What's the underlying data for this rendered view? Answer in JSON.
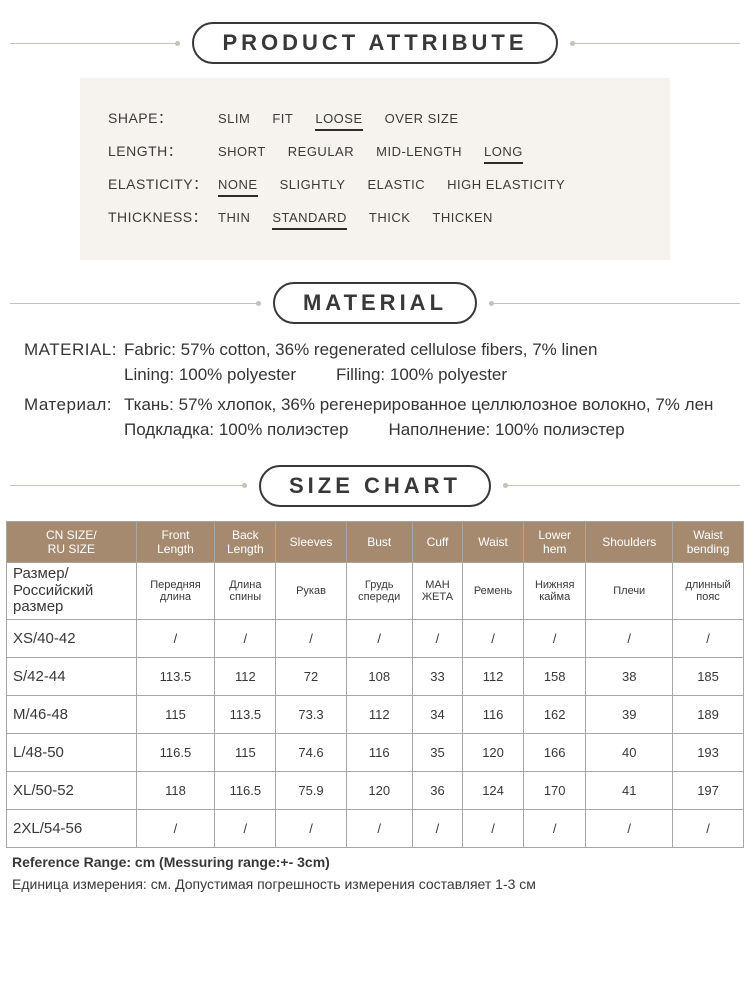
{
  "sections": {
    "attribute_title": "PRODUCT ATTRIBUTE",
    "material_title": "MATERIAL",
    "size_title": "SIZE CHART"
  },
  "attributes": {
    "shape": {
      "label": "SHAPE：",
      "options": [
        "SLIM",
        "FIT",
        "LOOSE",
        "OVER SIZE"
      ],
      "selected": 2
    },
    "length": {
      "label": "LENGTH：",
      "options": [
        "SHORT",
        "REGULAR",
        "MID-LENGTH",
        "LONG"
      ],
      "selected": 3
    },
    "elasticity": {
      "label": "ELASTICITY：",
      "options": [
        "NONE",
        "SLIGHTLY",
        "ELASTIC",
        "HIGH ELASTICITY"
      ],
      "selected": 0
    },
    "thickness": {
      "label": "THICKNESS：",
      "options": [
        "THIN",
        "STANDARD",
        "THICK",
        "THICKEN"
      ],
      "selected": 1
    }
  },
  "material": {
    "en_label": "MATERIAL:",
    "en_fabric": "Fabric: 57% cotton, 36% regenerated cellulose fibers, 7% linen",
    "en_lining": "Lining: 100% polyester",
    "en_filling": "Filling: 100% polyester",
    "ru_label": "Материал:",
    "ru_fabric": "Ткань: 57% хлопок, 36% регенерированное целлюлозное волокно, 7% лен",
    "ru_lining": "Подкладка: 100% полиэстер",
    "ru_filling": "Наполнение: 100% полиэстер"
  },
  "size_chart": {
    "header_bg": "#a68a70",
    "header_fg": "#ffffff",
    "columns_en": [
      "CN SIZE/\nRU SIZE",
      "Front\nLength",
      "Back\nLength",
      "Sleeves",
      "Bust",
      "Cuff",
      "Waist",
      "Lower\nhem",
      "Shoulders",
      "Waist\nbending"
    ],
    "columns_ru": [
      "Размер/\nРоссийский\nразмер",
      "Передняя\nдлина",
      "Длина\nспины",
      "Рукав",
      "Грудь\nспереди",
      "МАН\nЖЕТА",
      "Ремень",
      "Нижняя\nкайма",
      "Плечи",
      "длинный\nпояс"
    ],
    "rows": [
      [
        "XS/40-42",
        "/",
        "/",
        "/",
        "/",
        "/",
        "/",
        "/",
        "/",
        "/"
      ],
      [
        "S/42-44",
        "113.5",
        "112",
        "72",
        "108",
        "33",
        "112",
        "158",
        "38",
        "185"
      ],
      [
        "M/46-48",
        "115",
        "113.5",
        "73.3",
        "112",
        "34",
        "116",
        "162",
        "39",
        "189"
      ],
      [
        "L/48-50",
        "116.5",
        "115",
        "74.6",
        "116",
        "35",
        "120",
        "166",
        "40",
        "193"
      ],
      [
        "XL/50-52",
        "118",
        "116.5",
        "75.9",
        "120",
        "36",
        "124",
        "170",
        "41",
        "197"
      ],
      [
        "2XL/54-56",
        "/",
        "/",
        "/",
        "/",
        "/",
        "/",
        "/",
        "/",
        "/"
      ]
    ]
  },
  "footnotes": {
    "en": "Reference Range: cm (Messuring range:+- 3cm)",
    "ru": "Единица измерения: см. Допустимая погрешность измерения составляет 1-3 см"
  }
}
